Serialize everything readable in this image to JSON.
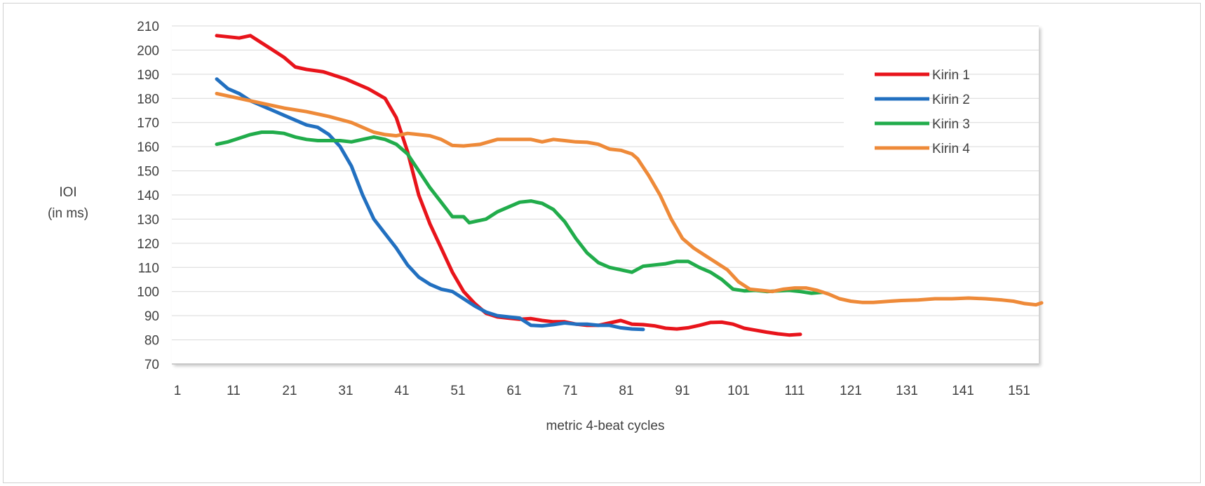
{
  "chart_data": {
    "type": "line",
    "title": "",
    "xlabel": "metric 4-beat cycles",
    "ylabel_lines": [
      "IOI",
      "(in ms)"
    ],
    "xlim": [
      1,
      155
    ],
    "ylim": [
      70,
      210
    ],
    "x_ticks": [
      1,
      11,
      21,
      31,
      41,
      51,
      61,
      71,
      81,
      91,
      101,
      111,
      121,
      131,
      141,
      151
    ],
    "y_ticks": [
      70,
      80,
      90,
      100,
      110,
      120,
      130,
      140,
      150,
      160,
      170,
      180,
      190,
      200,
      210
    ],
    "grid": "horizontal",
    "legend_position": "top-right",
    "series": [
      {
        "name": "Kirin 1",
        "color": "#e8141b",
        "points": [
          [
            8,
            206
          ],
          [
            12,
            205
          ],
          [
            14,
            206
          ],
          [
            16,
            203
          ],
          [
            18,
            200
          ],
          [
            20,
            197
          ],
          [
            22,
            193
          ],
          [
            24,
            192
          ],
          [
            27,
            191
          ],
          [
            31,
            188
          ],
          [
            35,
            184
          ],
          [
            38,
            180
          ],
          [
            40,
            172
          ],
          [
            42,
            158
          ],
          [
            44,
            140
          ],
          [
            46,
            128
          ],
          [
            48,
            118
          ],
          [
            50,
            108
          ],
          [
            52,
            100
          ],
          [
            54,
            95
          ],
          [
            56,
            91
          ],
          [
            58,
            89.5
          ],
          [
            60,
            89
          ],
          [
            62,
            88.5
          ],
          [
            64,
            88.8
          ],
          [
            66,
            88
          ],
          [
            68,
            87.5
          ],
          [
            70,
            87.5
          ],
          [
            72,
            86.5
          ],
          [
            74,
            86
          ],
          [
            76,
            86
          ],
          [
            78,
            87
          ],
          [
            80,
            88
          ],
          [
            82,
            86.5
          ],
          [
            84,
            86.3
          ],
          [
            86,
            85.8
          ],
          [
            88,
            84.8
          ],
          [
            90,
            84.5
          ],
          [
            92,
            85
          ],
          [
            94,
            86
          ],
          [
            96,
            87.2
          ],
          [
            98,
            87.3
          ],
          [
            100,
            86.5
          ],
          [
            102,
            84.8
          ],
          [
            104,
            84
          ],
          [
            106,
            83.2
          ],
          [
            108,
            82.5
          ],
          [
            110,
            82
          ],
          [
            112,
            82.3
          ]
        ]
      },
      {
        "name": "Kirin 2",
        "color": "#2270c0",
        "points": [
          [
            8,
            188
          ],
          [
            9,
            186
          ],
          [
            10,
            184
          ],
          [
            12,
            182
          ],
          [
            14,
            179
          ],
          [
            16,
            177
          ],
          [
            18,
            175
          ],
          [
            20,
            173
          ],
          [
            22,
            171
          ],
          [
            24,
            169
          ],
          [
            26,
            168
          ],
          [
            28,
            165
          ],
          [
            30,
            160
          ],
          [
            32,
            152
          ],
          [
            34,
            140
          ],
          [
            36,
            130
          ],
          [
            38,
            124
          ],
          [
            40,
            118
          ],
          [
            42,
            111
          ],
          [
            44,
            106
          ],
          [
            46,
            103
          ],
          [
            48,
            101
          ],
          [
            50,
            100
          ],
          [
            52,
            97
          ],
          [
            54,
            94
          ],
          [
            56,
            91.5
          ],
          [
            58,
            90
          ],
          [
            60,
            89.5
          ],
          [
            62,
            89
          ],
          [
            64,
            86
          ],
          [
            66,
            85.8
          ],
          [
            68,
            86.3
          ],
          [
            70,
            87
          ],
          [
            72,
            86.5
          ],
          [
            74,
            86.5
          ],
          [
            76,
            86
          ],
          [
            78,
            86
          ],
          [
            80,
            85
          ],
          [
            82,
            84.5
          ],
          [
            84,
            84.3
          ]
        ]
      },
      {
        "name": "Kirin 3",
        "color": "#21ac4b",
        "points": [
          [
            8,
            161
          ],
          [
            10,
            162
          ],
          [
            12,
            163.5
          ],
          [
            14,
            165
          ],
          [
            16,
            166
          ],
          [
            18,
            166
          ],
          [
            20,
            165.5
          ],
          [
            22,
            164
          ],
          [
            24,
            163
          ],
          [
            26,
            162.5
          ],
          [
            28,
            162.5
          ],
          [
            30,
            162.5
          ],
          [
            32,
            162
          ],
          [
            34,
            163
          ],
          [
            36,
            164
          ],
          [
            38,
            163
          ],
          [
            40,
            161
          ],
          [
            42,
            157
          ],
          [
            44,
            150
          ],
          [
            46,
            143
          ],
          [
            48,
            137
          ],
          [
            50,
            131
          ],
          [
            52,
            131
          ],
          [
            53,
            128.5
          ],
          [
            56,
            130
          ],
          [
            58,
            133
          ],
          [
            60,
            135
          ],
          [
            62,
            137
          ],
          [
            64,
            137.5
          ],
          [
            66,
            136.5
          ],
          [
            68,
            134
          ],
          [
            70,
            129
          ],
          [
            72,
            122
          ],
          [
            74,
            116
          ],
          [
            76,
            112
          ],
          [
            78,
            110
          ],
          [
            80,
            109
          ],
          [
            82,
            108
          ],
          [
            84,
            110.5
          ],
          [
            86,
            111
          ],
          [
            88,
            111.5
          ],
          [
            90,
            112.5
          ],
          [
            92,
            112.5
          ],
          [
            94,
            110
          ],
          [
            96,
            108
          ],
          [
            98,
            105
          ],
          [
            100,
            101
          ],
          [
            102,
            100.3
          ],
          [
            104,
            100.5
          ],
          [
            106,
            100
          ],
          [
            108,
            100.3
          ],
          [
            110,
            100.5
          ],
          [
            112,
            100
          ],
          [
            114,
            99.3
          ],
          [
            116,
            99.7
          ]
        ]
      },
      {
        "name": "Kirin 4",
        "color": "#ee8a39",
        "points": [
          [
            8,
            182
          ],
          [
            12,
            180
          ],
          [
            16,
            178
          ],
          [
            20,
            176
          ],
          [
            24,
            174.5
          ],
          [
            28,
            172.5
          ],
          [
            32,
            170
          ],
          [
            36,
            166
          ],
          [
            38,
            165
          ],
          [
            40,
            164.5
          ],
          [
            42,
            165.5
          ],
          [
            44,
            165
          ],
          [
            46,
            164.5
          ],
          [
            48,
            163
          ],
          [
            50,
            160.5
          ],
          [
            52,
            160.3
          ],
          [
            55,
            161
          ],
          [
            58,
            163
          ],
          [
            61,
            163
          ],
          [
            64,
            163
          ],
          [
            66,
            162
          ],
          [
            68,
            163
          ],
          [
            70,
            162.5
          ],
          [
            72,
            162
          ],
          [
            74,
            161.8
          ],
          [
            76,
            161
          ],
          [
            78,
            159
          ],
          [
            80,
            158.5
          ],
          [
            82,
            157
          ],
          [
            83,
            155
          ],
          [
            85,
            148
          ],
          [
            87,
            140
          ],
          [
            89,
            130
          ],
          [
            91,
            122
          ],
          [
            93,
            118
          ],
          [
            95,
            115
          ],
          [
            97,
            112
          ],
          [
            99,
            109
          ],
          [
            101,
            104
          ],
          [
            103,
            101
          ],
          [
            105,
            100.5
          ],
          [
            107,
            100
          ],
          [
            109,
            101
          ],
          [
            111,
            101.5
          ],
          [
            113,
            101.5
          ],
          [
            115,
            100.5
          ],
          [
            117,
            99
          ],
          [
            119,
            97
          ],
          [
            121,
            96
          ],
          [
            123,
            95.5
          ],
          [
            125,
            95.5
          ],
          [
            128,
            96
          ],
          [
            130,
            96.3
          ],
          [
            133,
            96.5
          ],
          [
            136,
            97
          ],
          [
            139,
            97
          ],
          [
            142,
            97.3
          ],
          [
            145,
            97
          ],
          [
            148,
            96.5
          ],
          [
            150,
            96
          ],
          [
            152,
            95
          ],
          [
            154,
            94.5
          ],
          [
            155,
            95.3
          ]
        ]
      }
    ]
  }
}
